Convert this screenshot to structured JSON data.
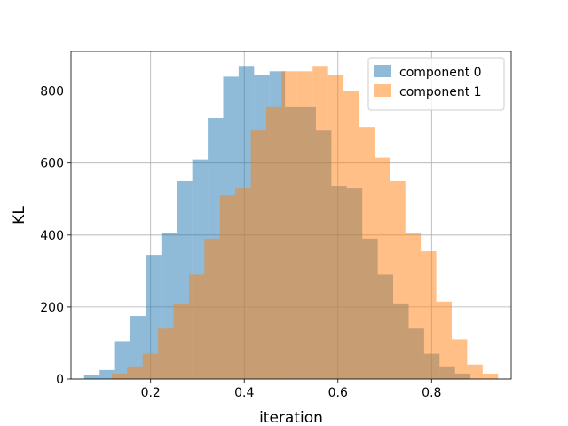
{
  "chart_data": {
    "type": "bar",
    "title": "",
    "xlabel": "iteration",
    "ylabel": "KL",
    "xlim": [
      0.03,
      0.97
    ],
    "ylim": [
      0,
      910
    ],
    "xticks": [
      0.2,
      0.4,
      0.6,
      0.8
    ],
    "yticks": [
      0,
      200,
      400,
      600,
      800
    ],
    "grid": true,
    "legend_position": "top-right",
    "bin_width": 0.033,
    "series": [
      {
        "name": "component 0",
        "color": "#1f77b4",
        "opacity": 0.5,
        "bin_edges": [
          0.058,
          0.091,
          0.124,
          0.157,
          0.19,
          0.223,
          0.256,
          0.289,
          0.322,
          0.355,
          0.388,
          0.421,
          0.454,
          0.487,
          0.52,
          0.553,
          0.586,
          0.619,
          0.652,
          0.685,
          0.718,
          0.751,
          0.784,
          0.817,
          0.85,
          0.883
        ],
        "values": [
          10,
          25,
          105,
          175,
          345,
          405,
          550,
          610,
          725,
          840,
          870,
          845,
          855,
          755,
          755,
          690,
          535,
          530,
          390,
          290,
          210,
          140,
          70,
          35,
          15
        ]
      },
      {
        "name": "component 1",
        "color": "#ff7f0e",
        "opacity": 0.5,
        "bin_edges": [
          0.117,
          0.15,
          0.183,
          0.216,
          0.249,
          0.282,
          0.315,
          0.348,
          0.381,
          0.414,
          0.447,
          0.48,
          0.513,
          0.546,
          0.579,
          0.612,
          0.645,
          0.678,
          0.711,
          0.744,
          0.777,
          0.81,
          0.843,
          0.876,
          0.909,
          0.942
        ],
        "values": [
          15,
          35,
          70,
          140,
          210,
          290,
          390,
          510,
          530,
          690,
          755,
          855,
          855,
          870,
          845,
          800,
          700,
          615,
          550,
          405,
          355,
          215,
          110,
          40,
          15
        ]
      }
    ]
  }
}
